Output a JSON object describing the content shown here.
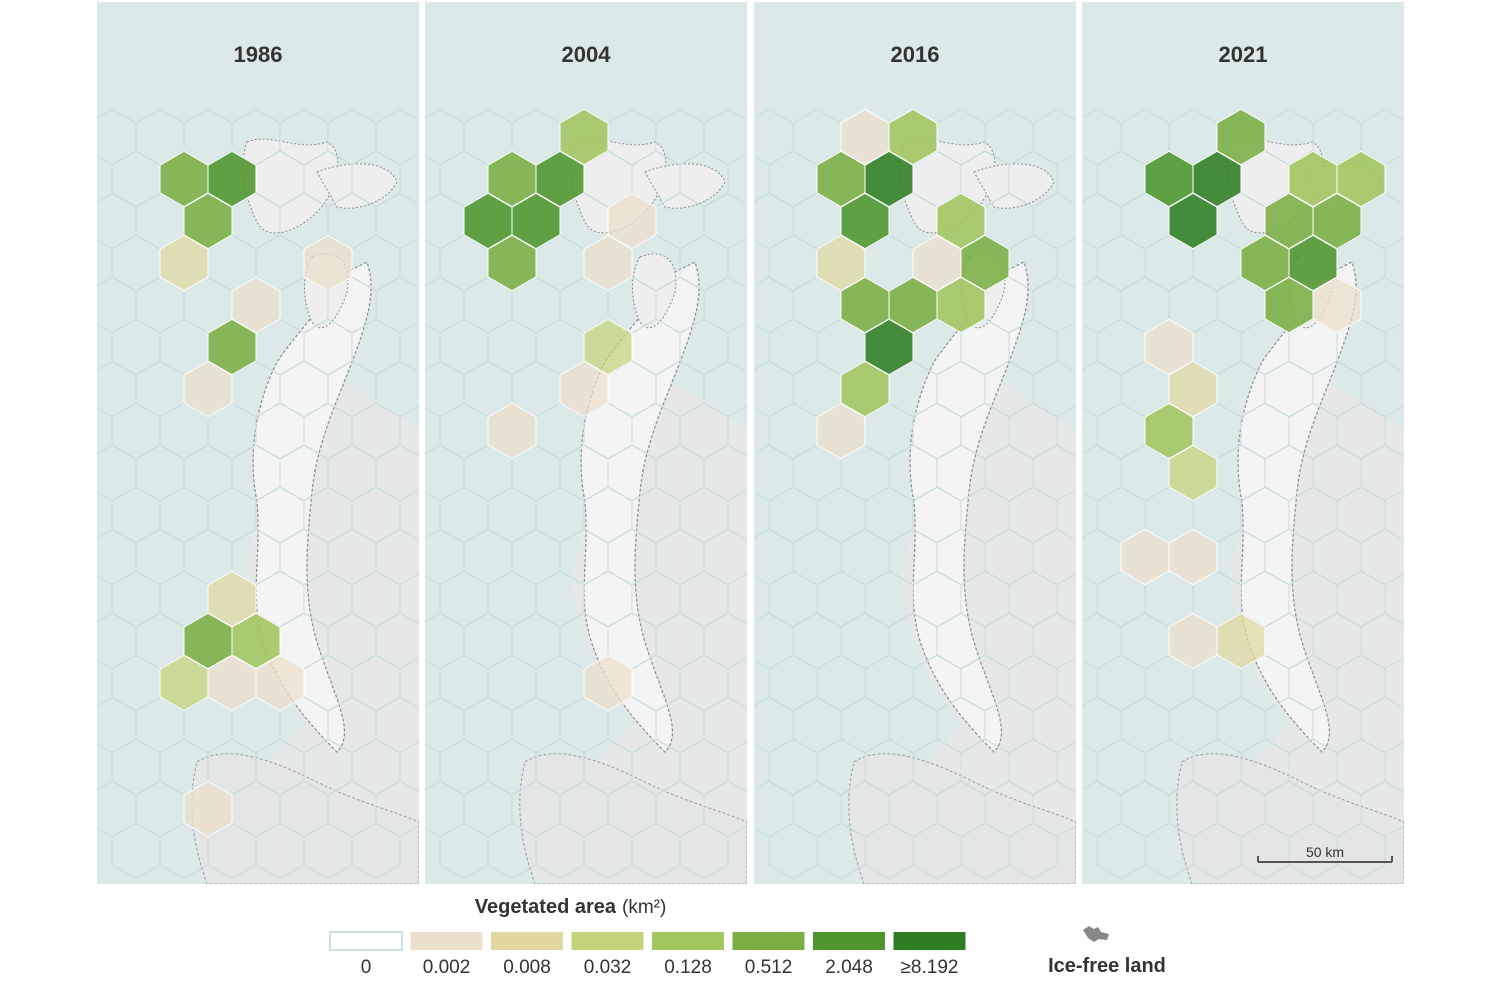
{
  "panels": [
    {
      "year": "1986"
    },
    {
      "year": "2004"
    },
    {
      "year": "2016"
    },
    {
      "year": "2021"
    }
  ],
  "legend": {
    "title": "Vegetated area",
    "unit": "(km²)",
    "items": [
      {
        "label": "0",
        "color": "#ffffff"
      },
      {
        "label": "0.002",
        "color": "#ecdfcc"
      },
      {
        "label": "0.008",
        "color": "#e1d8a0"
      },
      {
        "label": "0.032",
        "color": "#c4d47a"
      },
      {
        "label": "0.128",
        "color": "#a2c55e"
      },
      {
        "label": "0.512",
        "color": "#7aae43"
      },
      {
        "label": "2.048",
        "color": "#4f952e"
      },
      {
        "label": "≥8.192",
        "color": "#2f7d23"
      }
    ]
  },
  "ice_free": {
    "label": "Ice-free land"
  },
  "scale": {
    "label": "50 km"
  }
}
